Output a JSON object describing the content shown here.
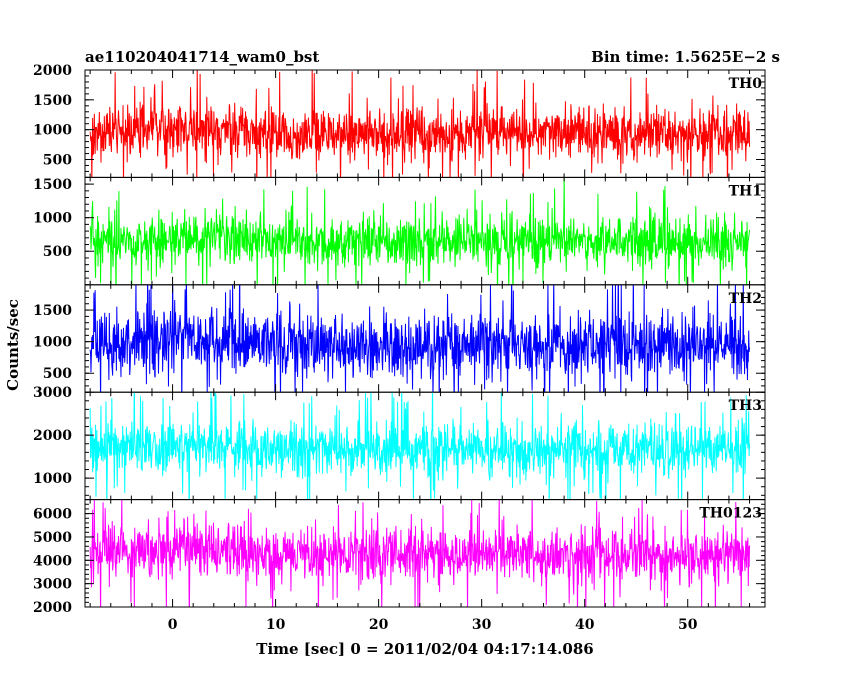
{
  "header": {
    "title": "ae110204041714_wam0_bst",
    "bin_time": "Bin time: 1.5625E−2 s"
  },
  "chart_data": {
    "type": "line",
    "xlabel": "Time [sec] 0 = 2011/02/04 04:17:14.086",
    "ylabel": "Counts/sec",
    "xlim": [
      -8.5,
      57.5
    ],
    "xticks": [
      0,
      10,
      20,
      30,
      40,
      50
    ],
    "data_x_range": [
      -8,
      56
    ],
    "bin_time_sec": 0.015625,
    "panels": [
      {
        "name": "TH0",
        "color": "#ff0000",
        "ylim": [
          200,
          2000
        ],
        "yticks": [
          500,
          1000,
          1500,
          2000
        ],
        "mean": 950,
        "spread": 480
      },
      {
        "name": "TH1",
        "color": "#00ff00",
        "ylim": [
          0,
          1600
        ],
        "yticks": [
          500,
          1000,
          1500
        ],
        "mean": 640,
        "spread": 420
      },
      {
        "name": "TH2",
        "color": "#0000ff",
        "ylim": [
          200,
          1900
        ],
        "yticks": [
          500,
          1000,
          1500
        ],
        "mean": 950,
        "spread": 560
      },
      {
        "name": "TH3",
        "color": "#00ffff",
        "ylim": [
          500,
          3000
        ],
        "yticks": [
          1000,
          2000,
          3000
        ],
        "mean": 1650,
        "spread": 700
      },
      {
        "name": "TH0123",
        "color": "#ff00ff",
        "ylim": [
          2000,
          6600
        ],
        "yticks": [
          2000,
          3000,
          4000,
          5000,
          6000
        ],
        "mean": 4200,
        "spread": 1300
      }
    ]
  }
}
